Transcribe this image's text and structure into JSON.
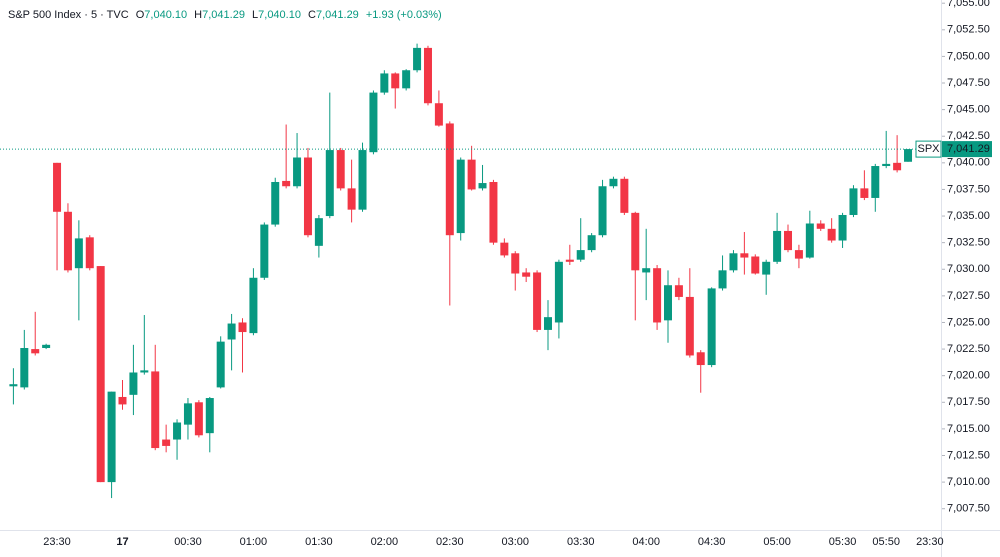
{
  "chart_data": {
    "type": "candlestick",
    "header": {
      "symbol": "S&P 500 Index · 5 · TVC",
      "ohlc": [
        {
          "key": "O",
          "value": "7,040.10"
        },
        {
          "key": "H",
          "value": "7,041.29"
        },
        {
          "key": "L",
          "value": "7,040.10"
        },
        {
          "key": "C",
          "value": "7,041.29"
        }
      ],
      "change": "+1.93 (+0.03%)"
    },
    "up_color": "#089981",
    "down_color": "#f23645",
    "categories": [
      null,
      null,
      null,
      null,
      "23:30",
      null,
      null,
      null,
      null,
      null,
      "17",
      null,
      null,
      null,
      null,
      null,
      "00:30",
      null,
      null,
      null,
      null,
      null,
      "01:00",
      null,
      null,
      null,
      null,
      null,
      "01:30",
      null,
      null,
      null,
      null,
      null,
      "02:00",
      null,
      null,
      null,
      null,
      null,
      "02:30",
      null,
      null,
      null,
      null,
      null,
      "03:00",
      null,
      null,
      null,
      null,
      null,
      "03:30",
      null,
      null,
      null,
      null,
      null,
      "04:00",
      null,
      null,
      null,
      null,
      null,
      "04:30",
      null,
      null,
      null,
      null,
      null,
      "05:00",
      null,
      null,
      null,
      null,
      null,
      "05:30",
      null,
      null,
      null,
      "05:50",
      null,
      null,
      null,
      "23:30"
    ],
    "open": [
      7019.0,
      7018.9,
      7022.5,
      7022.6,
      7040.0,
      7035.4,
      7030.1,
      7033.0,
      7030.3,
      7010.0,
      7018.0,
      7018.2,
      7020.3,
      7020.4,
      7014.0,
      7014.0,
      7015.4,
      7017.5,
      7014.6,
      7018.9,
      7023.4,
      7025.0,
      7024.0,
      7029.2,
      7034.2,
      7038.3,
      7037.8,
      7040.5,
      7032.2,
      7035.0,
      7041.2,
      7037.6,
      7035.6,
      7041.0,
      7046.6,
      7048.4,
      7047.0,
      7048.7,
      7050.8,
      7045.6,
      7043.7,
      7033.4,
      7040.3,
      7037.6,
      7038.2,
      7032.5,
      7031.5,
      7029.7,
      7029.7,
      7024.3,
      7025.0,
      7030.9,
      7030.9,
      7031.8,
      7033.2,
      7037.8,
      7038.5,
      7035.3,
      7029.7,
      7030.1,
      7025.2,
      7028.5,
      7027.4,
      7022.2,
      7021.0,
      7028.2,
      7029.9,
      7031.5,
      7031.2,
      7029.5,
      7030.7,
      7033.6,
      7031.8,
      7031.1,
      7034.3,
      7033.8,
      7032.7,
      7035.1,
      7037.6,
      7036.7,
      7039.7,
      7040.0,
      7040.1,
      null,
      null
    ],
    "high": [
      7020.7,
      7024.3,
      7026.0,
      7023.0,
      7040.0,
      7036.2,
      7034.6,
      7033.2,
      7030.3,
      7018.5,
      7019.6,
      7022.9,
      7025.7,
      7022.9,
      7015.4,
      7015.9,
      7017.9,
      7017.7,
      7018.0,
      7023.7,
      7025.8,
      7025.4,
      7030.1,
      7034.4,
      7038.6,
      7043.6,
      7042.8,
      7041.4,
      7035.1,
      7046.6,
      7041.4,
      7040.3,
      7041.9,
      7046.8,
      7048.7,
      7048.5,
      7048.8,
      7051.2,
      7051.0,
      7046.8,
      7043.9,
      7040.5,
      7041.6,
      7039.8,
      7038.4,
      7032.9,
      7031.7,
      7030.1,
      7029.9,
      7027.1,
      7030.9,
      7032.3,
      7034.8,
      7033.4,
      7038.4,
      7038.7,
      7038.7,
      7035.4,
      7033.8,
      7030.4,
      7029.9,
      7029.2,
      7030.1,
      7022.4,
      7028.3,
      7031.3,
      7031.8,
      7033.5,
      7031.4,
      7030.9,
      7035.3,
      7034.2,
      7032.3,
      7035.5,
      7034.6,
      7034.8,
      7035.3,
      7037.9,
      7039.3,
      7039.9,
      7043.0,
      7042.6,
      7041.29,
      null,
      null
    ],
    "low": [
      7017.3,
      7018.7,
      7021.9,
      7022.5,
      7029.9,
      7029.7,
      7025.2,
      7029.9,
      7010.0,
      7008.5,
      7016.8,
      7016.3,
      7020.1,
      7013.0,
      7012.8,
      7012.1,
      7014.0,
      7014.2,
      7012.8,
      7018.8,
      7020.5,
      7020.3,
      7023.8,
      7029.0,
      7034.0,
      7037.6,
      7037.6,
      7033.0,
      7031.1,
      7034.8,
      7037.4,
      7034.4,
      7035.4,
      7040.8,
      7046.4,
      7045.1,
      7046.8,
      7048.5,
      7045.4,
      7043.4,
      7026.6,
      7032.7,
      7037.4,
      7037.4,
      7032.3,
      7031.1,
      7028.0,
      7028.8,
      7024.1,
      7022.4,
      7023.5,
      7030.4,
      7030.7,
      7031.6,
      7033.0,
      7037.6,
      7035.1,
      7025.2,
      7027.1,
      7024.3,
      7023.1,
      7027.1,
      7021.7,
      7018.4,
      7020.8,
      7028.0,
      7029.7,
      7029.5,
      7029.5,
      7027.6,
      7030.5,
      7031.6,
      7030.1,
      7031.0,
      7033.6,
      7032.5,
      7032.0,
      7034.9,
      7036.5,
      7035.4,
      7039.5,
      7039.1,
      7040.1,
      null,
      null
    ],
    "close": [
      7019.2,
      7022.6,
      7022.1,
      7022.9,
      7035.4,
      7029.9,
      7032.9,
      7030.1,
      7010.0,
      7018.5,
      7017.3,
      7020.3,
      7020.5,
      7013.2,
      7013.4,
      7015.6,
      7017.4,
      7014.4,
      7017.9,
      7023.2,
      7024.9,
      7024.1,
      7029.2,
      7034.2,
      7038.2,
      7037.8,
      7040.5,
      7033.2,
      7034.8,
      7041.2,
      7037.6,
      7035.6,
      7041.2,
      7046.6,
      7048.4,
      7047.0,
      7048.7,
      7050.8,
      7045.6,
      7043.5,
      7033.2,
      7040.3,
      7037.5,
      7038.1,
      7032.5,
      7031.3,
      7029.6,
      7029.3,
      7024.3,
      7025.5,
      7030.7,
      7030.7,
      7031.8,
      7033.2,
      7037.8,
      7038.5,
      7035.3,
      7029.9,
      7030.1,
      7025.0,
      7028.5,
      7027.4,
      7021.9,
      7021.0,
      7028.2,
      7029.9,
      7031.5,
      7031.1,
      7029.6,
      7030.7,
      7033.6,
      7031.8,
      7031.0,
      7034.3,
      7033.8,
      7032.7,
      7035.1,
      7037.6,
      7036.7,
      7039.7,
      7039.9,
      7039.3,
      7041.29,
      null,
      null
    ],
    "ylim": [
      7005.5,
      7055.3
    ],
    "yticks": [
      {
        "value": 7007.5,
        "label": "7,007.50"
      },
      {
        "value": 7010,
        "label": "7,010.00"
      },
      {
        "value": 7012.5,
        "label": "7,012.50"
      },
      {
        "value": 7015,
        "label": "7,015.00"
      },
      {
        "value": 7017.5,
        "label": "7,017.50"
      },
      {
        "value": 7020,
        "label": "7,020.00"
      },
      {
        "value": 7022.5,
        "label": "7,022.50"
      },
      {
        "value": 7025,
        "label": "7,025.00"
      },
      {
        "value": 7027.5,
        "label": "7,027.50"
      },
      {
        "value": 7030,
        "label": "7,030.00"
      },
      {
        "value": 7032.5,
        "label": "7,032.50"
      },
      {
        "value": 7035,
        "label": "7,035.00"
      },
      {
        "value": 7037.5,
        "label": "7,037.50"
      },
      {
        "value": 7040,
        "label": "7,040.00"
      },
      {
        "value": 7042.5,
        "label": "7,042.50"
      },
      {
        "value": 7045,
        "label": "7,045.00"
      },
      {
        "value": 7047.5,
        "label": "7,047.50"
      },
      {
        "value": 7050,
        "label": "7,050.00"
      },
      {
        "value": 7052.5,
        "label": "7,052.50"
      },
      {
        "value": 7055,
        "label": "7,055.00"
      }
    ],
    "last_price": {
      "name": "SPX",
      "value": 7041.29,
      "label": "7,041.29"
    }
  }
}
